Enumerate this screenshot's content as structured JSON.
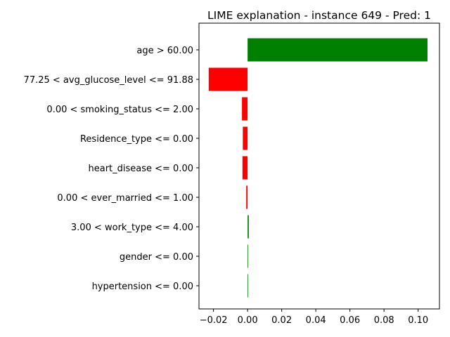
{
  "chart_data": {
    "type": "bar",
    "orientation": "horizontal",
    "title": "LIME explanation - instance 649 - Pred: 1",
    "xlabel": "",
    "ylabel": "",
    "categories": [
      "age > 60.00",
      "77.25 < avg_glucose_level <= 91.88",
      "0.00 < smoking_status <= 2.00",
      "Residence_type <= 0.00",
      "heart_disease <= 0.00",
      "0.00 < ever_married <= 1.00",
      "3.00 < work_type <= 4.00",
      "gender <= 0.00",
      "hypertension <= 0.00"
    ],
    "values": [
      0.1055,
      -0.0228,
      -0.0033,
      -0.0028,
      -0.003,
      -0.0008,
      0.0007,
      0.0002,
      0.0002
    ],
    "xlim": [
      -0.0285,
      0.1125
    ],
    "xticks": [
      -0.02,
      0.0,
      0.02,
      0.04,
      0.06,
      0.08,
      0.1
    ],
    "xtick_labels": [
      "−0.02",
      "0.00",
      "0.02",
      "0.04",
      "0.06",
      "0.08",
      "0.10"
    ],
    "grid": false,
    "colors": {
      "positive": "#008000",
      "negative": "#ff0000",
      "axis": "#000000"
    }
  }
}
